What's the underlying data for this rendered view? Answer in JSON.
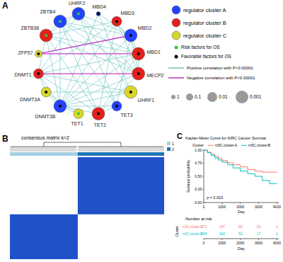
{
  "network": {
    "panel_label": "A",
    "nodes": [
      {
        "label": "MBD4",
        "cluster": 0,
        "factor": 1,
        "p": 1
      },
      {
        "label": "MBD3",
        "cluster": 1,
        "factor": 1,
        "p": 0.01
      },
      {
        "label": "MBD2",
        "cluster": 0,
        "factor": 1,
        "p": 0.001
      },
      {
        "label": "MBD1",
        "cluster": 1,
        "factor": 1,
        "p": 0.001
      },
      {
        "label": "MECP2",
        "cluster": 1,
        "factor": 1,
        "p": 0.001
      },
      {
        "label": "UHRF1",
        "cluster": 2,
        "factor": 1,
        "p": 0.001
      },
      {
        "label": "TET3",
        "cluster": 0,
        "factor": 1,
        "p": 0.01
      },
      {
        "label": "TET2",
        "cluster": 1,
        "factor": 1,
        "p": 0.001
      },
      {
        "label": "TET1",
        "cluster": 2,
        "factor": 0,
        "p": 0.01
      },
      {
        "label": "DNMT3B",
        "cluster": 0,
        "factor": 1,
        "p": 0.001
      },
      {
        "label": "DNMT3A",
        "cluster": 2,
        "factor": 1,
        "p": 0.01
      },
      {
        "label": "DNMT1",
        "cluster": 1,
        "factor": 1,
        "p": 0.01
      },
      {
        "label": "ZFP57",
        "cluster": 2,
        "factor": 1,
        "p": 0.1
      },
      {
        "label": "ZBTB38",
        "cluster": 1,
        "factor": 0,
        "p": 0.001
      },
      {
        "label": "ZBTB4",
        "cluster": 0,
        "factor": 0,
        "p": 0.001
      },
      {
        "label": "UHRF2",
        "cluster": 0,
        "factor": 0,
        "p": 0.001
      }
    ],
    "edges": [
      [
        0,
        2,
        0
      ],
      [
        0,
        5,
        0
      ],
      [
        0,
        9,
        0
      ],
      [
        1,
        3,
        0
      ],
      [
        1,
        4,
        0
      ],
      [
        1,
        7,
        0
      ],
      [
        1,
        11,
        0
      ],
      [
        1,
        13,
        0
      ],
      [
        1,
        9,
        0
      ],
      [
        2,
        3,
        0
      ],
      [
        2,
        4,
        0
      ],
      [
        2,
        6,
        0
      ],
      [
        2,
        9,
        0
      ],
      [
        2,
        14,
        0
      ],
      [
        2,
        15,
        0
      ],
      [
        3,
        4,
        0
      ],
      [
        3,
        7,
        0
      ],
      [
        3,
        13,
        0
      ],
      [
        3,
        9,
        0
      ],
      [
        3,
        11,
        0
      ],
      [
        4,
        7,
        0
      ],
      [
        4,
        13,
        0
      ],
      [
        4,
        14,
        0
      ],
      [
        4,
        9,
        0
      ],
      [
        5,
        9,
        0
      ],
      [
        5,
        11,
        0
      ],
      [
        5,
        15,
        0
      ],
      [
        5,
        10,
        0
      ],
      [
        6,
        14,
        0
      ],
      [
        6,
        15,
        0
      ],
      [
        6,
        9,
        0
      ],
      [
        7,
        13,
        0
      ],
      [
        7,
        9,
        0
      ],
      [
        7,
        11,
        0
      ],
      [
        7,
        14,
        0
      ],
      [
        8,
        10,
        0
      ],
      [
        8,
        9,
        0
      ],
      [
        9,
        10,
        0
      ],
      [
        9,
        11,
        0
      ],
      [
        9,
        13,
        0
      ],
      [
        9,
        14,
        0
      ],
      [
        10,
        11,
        0
      ],
      [
        11,
        13,
        0
      ],
      [
        11,
        15,
        0
      ],
      [
        13,
        14,
        0
      ],
      [
        13,
        15,
        0
      ],
      [
        14,
        15,
        0
      ],
      [
        6,
        7,
        0
      ],
      [
        3,
        14,
        0
      ],
      [
        4,
        15,
        0
      ],
      [
        12,
        3,
        1
      ],
      [
        12,
        2,
        1
      ],
      [
        11,
        4,
        1
      ]
    ],
    "legend": {
      "clusters": [
        {
          "label": "regulator cluster A",
          "color": "#2443ff"
        },
        {
          "label": "regulator cluster B",
          "color": "#e3211c"
        },
        {
          "label": "regulator cluster C",
          "color": "#d8d62b"
        }
      ],
      "factors": [
        {
          "label": "Risk factors for OS",
          "color": "#33cc33"
        },
        {
          "label": "Favorable factors for OS",
          "color": "#000000"
        }
      ],
      "edge_types": [
        {
          "label": "Positive correlation with P<0.00001",
          "color": "#74c6c4"
        },
        {
          "label": "Negative correlation with P<0.00001",
          "color": "#c040c8"
        }
      ],
      "sizes": [
        1,
        0.1,
        0.01,
        0.001
      ]
    }
  },
  "consensus": {
    "panel_label": "B",
    "title": "consensus matrix k=2",
    "clusters": [
      {
        "label": "1",
        "color": "#a6cee3",
        "size": 271
      },
      {
        "label": "2",
        "color": "#1f78b4",
        "size": 345
      }
    ]
  },
  "chart_data": {
    "panel_label": "C",
    "type": "line",
    "title": "Kaplan-Meier Curve for KIRC Cancer Survival",
    "x_label": "Day",
    "y_label": "Survival probability",
    "legend_title": "Cluster",
    "legend": "top",
    "grid": false,
    "annotation": "p = 0.023",
    "risk_table_title": "Number at risk",
    "risk_table_label": "Cluster",
    "x": [
      0,
      200,
      400,
      600,
      800,
      1000,
      1300,
      1600,
      2000,
      2400,
      2800,
      3200,
      3600,
      4000
    ],
    "series": [
      {
        "name": "m5C.cluster.A",
        "color": "#f8766d",
        "line_style": "step",
        "values": [
          1,
          0.96,
          0.92,
          0.88,
          0.84,
          0.8,
          0.76,
          0.72,
          0.68,
          0.63,
          0.6,
          0.58,
          0.58,
          0.58
        ],
        "at_risk": [
          271,
          147,
          65,
          23,
          1
        ]
      },
      {
        "name": "m5C.cluster.B",
        "color": "#00bfc4",
        "line_style": "step",
        "values": [
          1,
          0.95,
          0.9,
          0.85,
          0.81,
          0.77,
          0.72,
          0.66,
          0.6,
          0.55,
          0.5,
          0.42,
          0.36,
          0.36
        ],
        "at_risk": [
          345,
          160,
          53,
          17,
          2
        ]
      }
    ],
    "xlim": [
      0,
      4100
    ],
    "ylim": [
      0,
      1
    ],
    "xticks": [
      0,
      1000,
      2000,
      3000,
      4000
    ],
    "yticks": [
      {
        "value": 0,
        "label": "0.00"
      },
      {
        "value": 0.25,
        "label": "0.25"
      },
      {
        "value": 0.5,
        "label": "0.50"
      },
      {
        "value": 0.75,
        "label": "0.75"
      },
      {
        "value": 1,
        "label": "1.00"
      }
    ]
  }
}
